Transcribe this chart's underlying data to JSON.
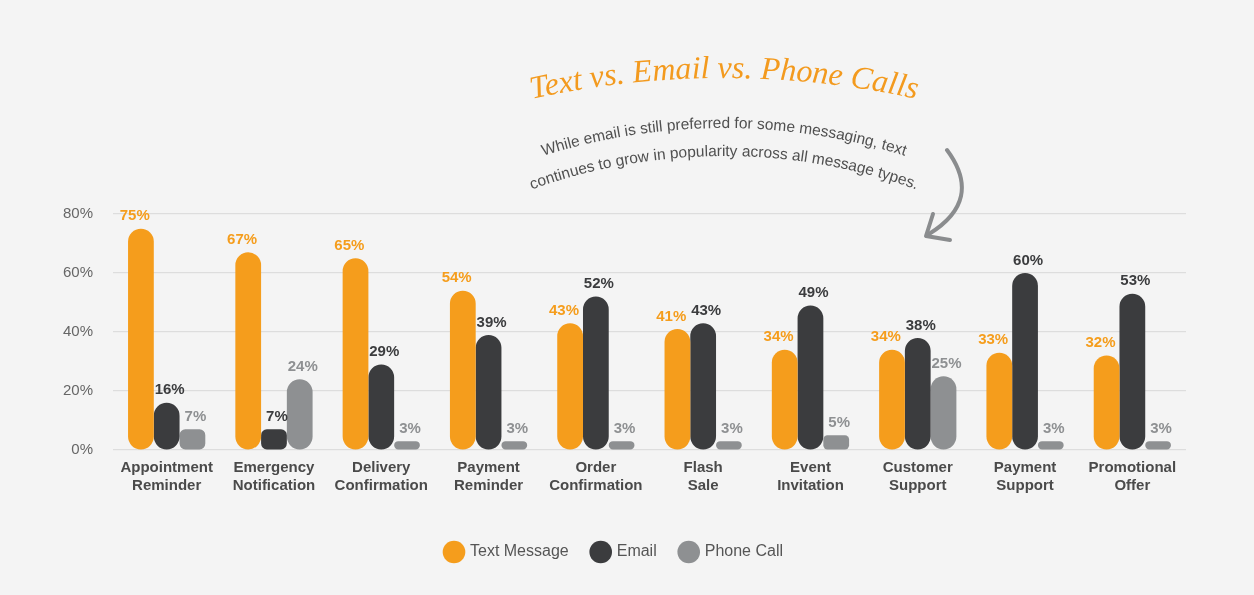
{
  "chart_data": {
    "type": "bar",
    "title": "Text vs. Email vs. Phone Calls",
    "subtitle": "While email is still preferred for some messaging, text\ncontinues to grow in popularity across all message types.",
    "categories": [
      "Appointment Reminder",
      "Emergency Notification",
      "Delivery Confirmation",
      "Payment Reminder",
      "Order Confirmation",
      "Flash Sale",
      "Event Invitation",
      "Customer Support",
      "Payment Support",
      "Promotional Offer"
    ],
    "series": [
      {
        "name": "Text Message",
        "color": "#f59d1c",
        "values": [
          75,
          67,
          65,
          54,
          43,
          41,
          34,
          34,
          33,
          32
        ],
        "value_labels": [
          "75%",
          "67%",
          "65%",
          "54%",
          "43%",
          "41%",
          "34%",
          "34%",
          "33%",
          "32%"
        ]
      },
      {
        "name": "Email",
        "color": "#3b3c3e",
        "values": [
          16,
          7,
          29,
          39,
          52,
          43,
          49,
          38,
          60,
          53
        ],
        "value_labels": [
          "16%",
          "7%",
          "29%",
          "39%",
          "52%",
          "43%",
          "49%",
          "38%",
          "60%",
          "53%"
        ]
      },
      {
        "name": "Phone Call",
        "color": "#8e9092",
        "values": [
          7,
          24,
          3,
          3,
          3,
          3,
          5,
          25,
          3,
          3
        ],
        "value_labels": [
          "7%",
          "24%",
          "3%",
          "3%",
          "3%",
          "3%",
          "5%",
          "25%",
          "3%",
          "3%"
        ]
      }
    ],
    "ylim": [
      0,
      80
    ],
    "yticks": [
      {
        "value": 0,
        "label": "0%"
      },
      {
        "value": 20,
        "label": "20%"
      },
      {
        "value": 40,
        "label": "40%"
      },
      {
        "value": 60,
        "label": "60%"
      },
      {
        "value": 80,
        "label": "80%"
      }
    ],
    "grid": "y",
    "legend": "bottom"
  }
}
